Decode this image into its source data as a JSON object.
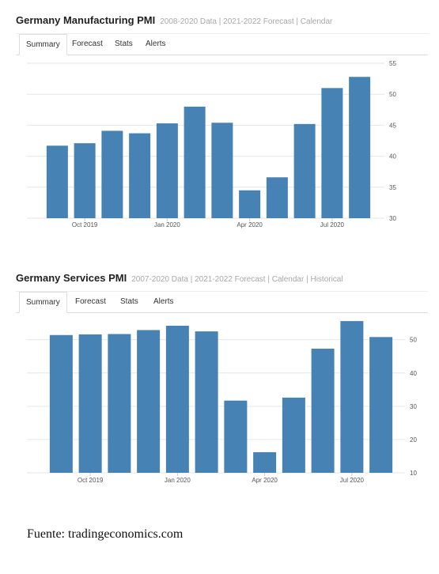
{
  "manufacturing": {
    "title": "Germany Manufacturing PMI",
    "subtitle": "2008-2020 Data | 2021-2022 Forecast | Calendar",
    "tabs": [
      "Summary",
      "Forecast",
      "Stats",
      "Alerts"
    ],
    "active_tab": "Summary"
  },
  "services": {
    "title": "Germany Services PMI",
    "subtitle": "2007-2020 Data | 2021-2022 Forecast | Calendar | Historical",
    "tabs": [
      "Summary",
      "Forecast",
      "Stats",
      "Alerts"
    ],
    "active_tab": "Summary"
  },
  "source_note": "Fuente: tradingeconomics.com",
  "colors": {
    "bar": "#4682b4",
    "grid": "#e6e6e6",
    "tick": "#555555"
  },
  "chart_data": [
    {
      "type": "bar",
      "title": "Germany Manufacturing PMI",
      "categories": [
        "Sep 2019",
        "Oct 2019",
        "Nov 2019",
        "Dec 2019",
        "Jan 2020",
        "Feb 2020",
        "Mar 2020",
        "Apr 2020",
        "May 2020",
        "Jun 2020",
        "Jul 2020",
        "Aug 2020"
      ],
      "values": [
        41.7,
        42.1,
        44.1,
        43.7,
        45.3,
        48.0,
        45.4,
        34.5,
        36.6,
        45.2,
        51.0,
        52.8
      ],
      "x_tick_labels": [
        "Oct 2019",
        "Jan 2020",
        "Apr 2020",
        "Jul 2020"
      ],
      "x_tick_categories": [
        "Oct 2019",
        "Jan 2020",
        "Apr 2020",
        "Jul 2020"
      ],
      "ylim": [
        30,
        55
      ],
      "yticks": [
        30,
        35,
        40,
        45,
        50,
        55
      ],
      "grid": true,
      "y_axis_side": "right"
    },
    {
      "type": "bar",
      "title": "Germany Services PMI",
      "categories": [
        "Sep 2019",
        "Oct 2019",
        "Nov 2019",
        "Dec 2019",
        "Jan 2020",
        "Feb 2020",
        "Mar 2020",
        "Apr 2020",
        "May 2020",
        "Jun 2020",
        "Jul 2020",
        "Aug 2020"
      ],
      "values": [
        51.4,
        51.6,
        51.7,
        52.9,
        54.2,
        52.5,
        31.7,
        16.2,
        32.6,
        47.3,
        55.6,
        50.8
      ],
      "x_tick_labels": [
        "Oct 2019",
        "Jan 2020",
        "Apr 2020",
        "Jul 2020"
      ],
      "x_tick_categories": [
        "Oct 2019",
        "Jan 2020",
        "Apr 2020",
        "Jul 2020"
      ],
      "ylim": [
        10,
        58
      ],
      "yticks": [
        10,
        20,
        30,
        40,
        50
      ],
      "grid": true,
      "y_axis_side": "right"
    }
  ]
}
